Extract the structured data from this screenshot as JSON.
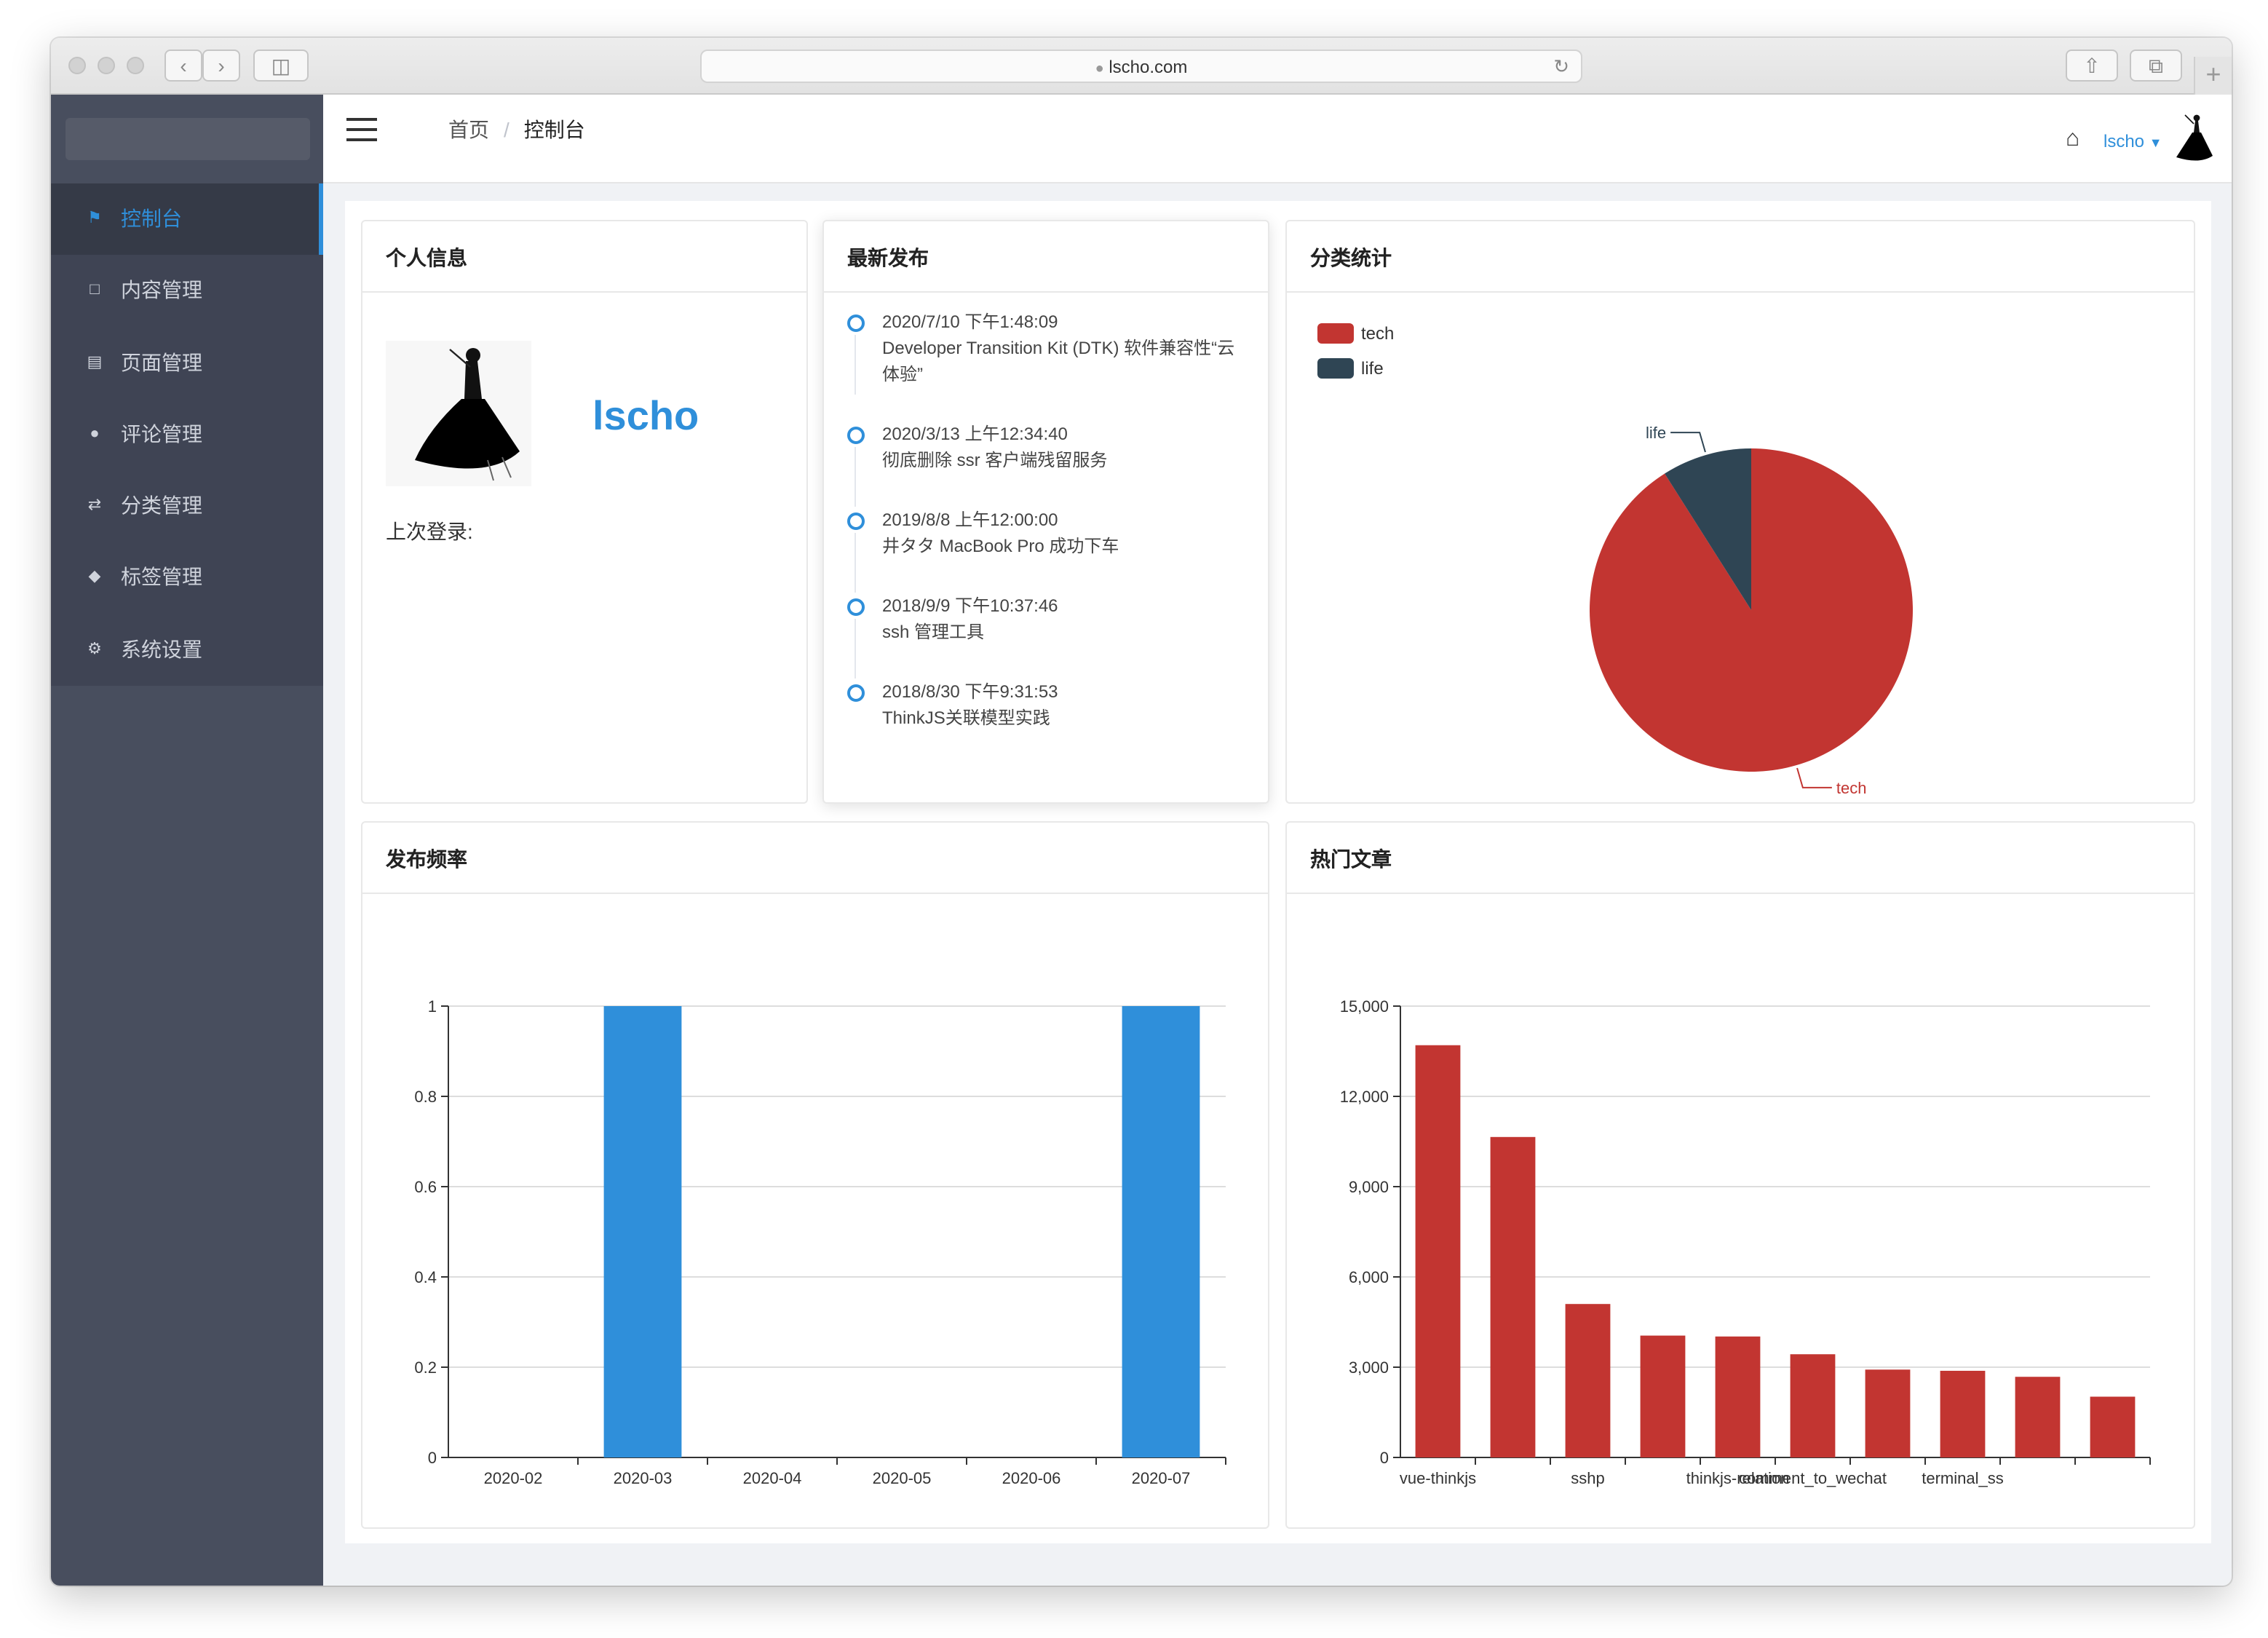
{
  "browser": {
    "url": "lscho.com"
  },
  "sidebar": {
    "items": [
      {
        "label": "控制台",
        "icon": "home-icon",
        "active": true
      },
      {
        "label": "内容管理",
        "icon": "document-icon",
        "active": false
      },
      {
        "label": "页面管理",
        "icon": "page-icon",
        "active": false
      },
      {
        "label": "评论管理",
        "icon": "comment-icon",
        "active": false
      },
      {
        "label": "分类管理",
        "icon": "shuffle-icon",
        "active": false
      },
      {
        "label": "标签管理",
        "icon": "tag-icon",
        "active": false
      },
      {
        "label": "系统设置",
        "icon": "gear-icon",
        "active": false
      }
    ]
  },
  "header": {
    "breadcrumb": {
      "home": "首页",
      "current": "控制台"
    },
    "username": "lscho"
  },
  "profile": {
    "title": "个人信息",
    "name": "lscho",
    "last_login_label": "上次登录:"
  },
  "latest": {
    "title": "最新发布",
    "items": [
      {
        "time": "2020/7/10 下午1:48:09",
        "title": "Developer Transition Kit (DTK) 软件兼容性“云体验”"
      },
      {
        "time": "2020/3/13 上午12:34:40",
        "title": "彻底删除 ssr 客户端残留服务"
      },
      {
        "time": "2019/8/8 上午12:00:00",
        "title": "井タタ MacBook Pro 成功下车"
      },
      {
        "time": "2018/9/9 下午10:37:46",
        "title": "ssh 管理工具"
      },
      {
        "time": "2018/8/30 下午9:31:53",
        "title": "ThinkJS关联模型实践"
      }
    ]
  },
  "cards": {
    "category_title": "分类统计",
    "frequency_title": "发布频率",
    "hot_title": "热门文章"
  },
  "colors": {
    "accent": "#2f8fda",
    "tech": "#c23531",
    "life": "#2f4554"
  },
  "chart_data": [
    {
      "type": "pie",
      "labels": [
        "tech",
        "life"
      ],
      "values": [
        91,
        9
      ],
      "legend": [
        "tech",
        "life"
      ],
      "legend_position": "top-left"
    },
    {
      "type": "bar",
      "categories": [
        "2020-02",
        "2020-03",
        "2020-04",
        "2020-05",
        "2020-06",
        "2020-07"
      ],
      "values": [
        0,
        1,
        0,
        0,
        0,
        1
      ],
      "ylim": [
        0,
        1
      ],
      "yticks": [
        "0",
        "0.2",
        "0.4",
        "0.6",
        "0.8",
        "1"
      ],
      "grid": true
    },
    {
      "type": "bar",
      "categories": [
        "vue-thinkjs",
        "",
        "sshp",
        "",
        "thinkjs-relation",
        "comment_to_wechat",
        "",
        "terminal_ss",
        "",
        ""
      ],
      "values": [
        13700,
        10650,
        5100,
        4050,
        4020,
        3430,
        2920,
        2880,
        2680,
        2020
      ],
      "ylim": [
        0,
        15000
      ],
      "yticks": [
        "0",
        "3,000",
        "6,000",
        "9,000",
        "12,000",
        "15,000"
      ],
      "grid": true
    }
  ]
}
